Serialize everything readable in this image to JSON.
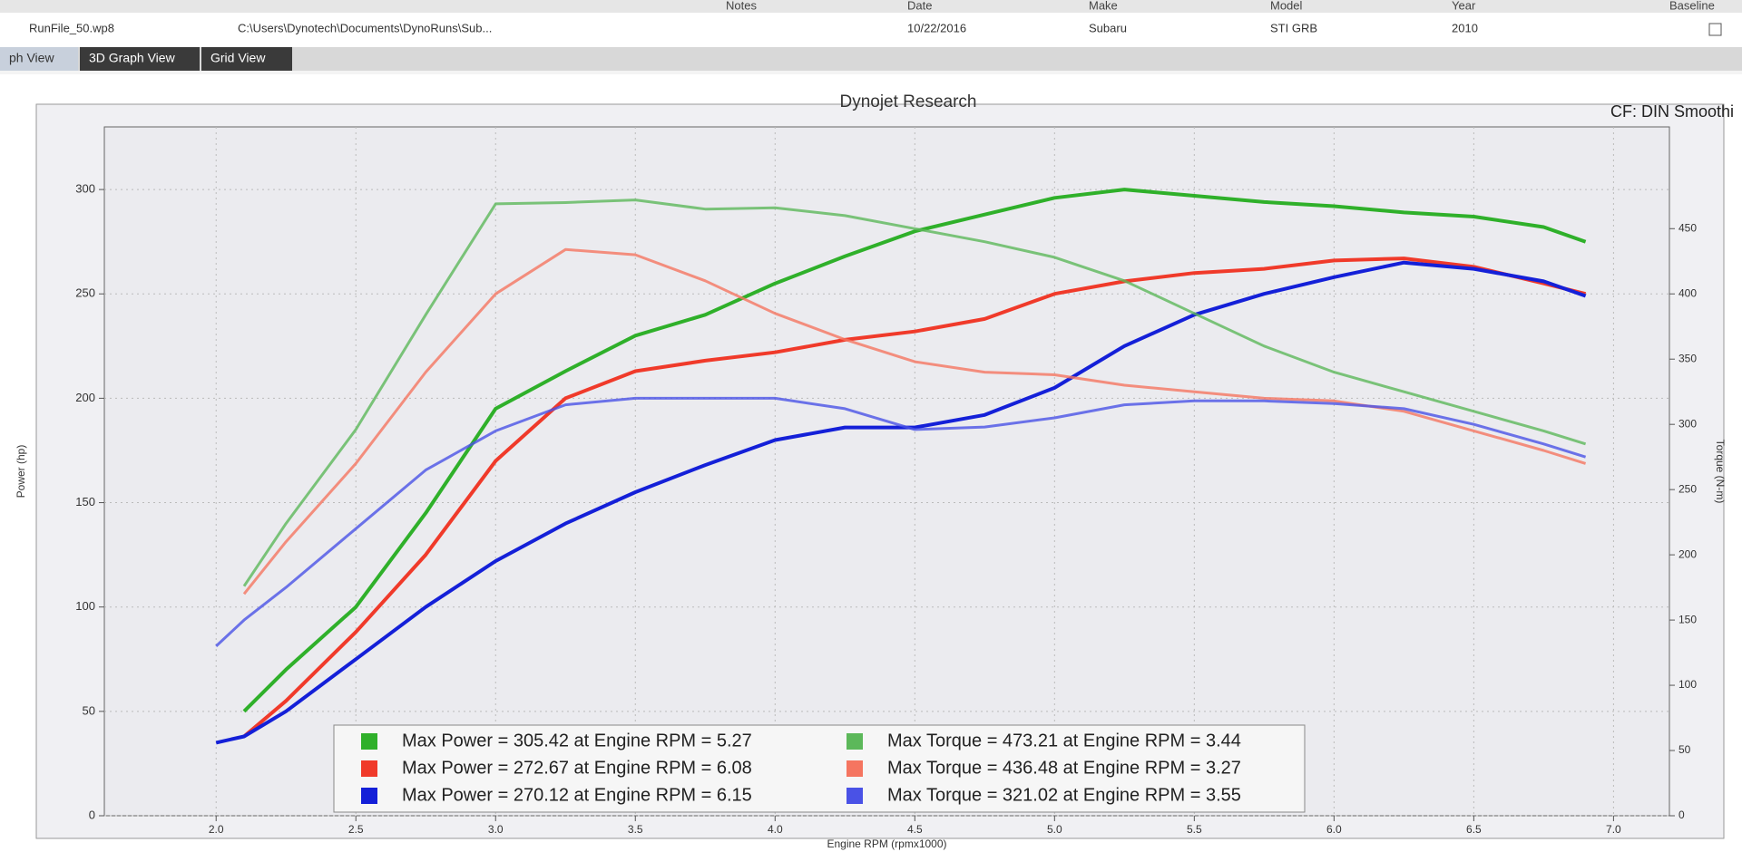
{
  "table": {
    "columns": [
      "Notes",
      "Date",
      "Make",
      "Model",
      "Year",
      "Baseline"
    ],
    "row": [
      "RunFile_50.wp8",
      "C:\\Users\\Dynotech\\Documents\\DynoRuns\\Sub...",
      "10/22/2016",
      "Subaru",
      "STI GRB",
      "2010"
    ]
  },
  "tabs": [
    "ph View",
    "3D Graph View",
    "Grid View"
  ],
  "chart_data": {
    "type": "line",
    "title": "Dynojet Research",
    "subtitle": "CF: DIN Smoothi",
    "x_label": "Engine RPM (rpmx1000)",
    "y_label": "Power (hp)",
    "y2_label": "Torque (N-m)",
    "x": [
      2.0,
      2.1,
      2.25,
      2.5,
      2.75,
      3.0,
      3.25,
      3.5,
      3.75,
      4.0,
      4.25,
      4.5,
      4.75,
      5.0,
      5.25,
      5.5,
      5.75,
      6.0,
      6.25,
      6.5,
      6.75,
      6.9
    ],
    "xlim": [
      1.6,
      7.2
    ],
    "xticks": [
      {
        "value": 2,
        "label": "2.0"
      },
      2.5,
      {
        "value": 3,
        "label": "3.0"
      },
      3.5,
      {
        "value": 4,
        "label": "4.0"
      },
      4.5,
      {
        "value": 5,
        "label": "5.0"
      },
      5.5,
      {
        "value": 6,
        "label": "6.0"
      },
      6.5,
      {
        "value": 7,
        "label": "7.0"
      }
    ],
    "ylim": [
      0,
      330
    ],
    "yticks": [
      0,
      50,
      100,
      150,
      200,
      250,
      300
    ],
    "y2lim": [
      0,
      528
    ],
    "y2ticks": [
      0,
      50,
      100,
      150,
      200,
      250,
      300,
      350,
      400,
      450
    ],
    "grid": true,
    "series": [
      {
        "name": "Max Power = 305.42 at Engine RPM = 5.27",
        "color": "#2fb02a",
        "values": [
          null,
          50,
          70,
          100,
          145,
          195,
          213,
          230,
          240,
          255,
          268,
          280,
          288,
          296,
          300,
          297,
          294,
          292,
          289,
          287,
          282,
          275
        ]
      },
      {
        "name": "Max Power = 272.67 at Engine RPM = 6.08",
        "color": "#f03a2a",
        "values": [
          null,
          38,
          55,
          88,
          125,
          170,
          200,
          213,
          218,
          222,
          228,
          232,
          238,
          250,
          256,
          260,
          262,
          266,
          267,
          263,
          255,
          250
        ]
      },
      {
        "name": "Max Power = 270.12 at Engine RPM = 6.15",
        "color": "#1420d8",
        "values": [
          35,
          38,
          50,
          75,
          100,
          122,
          140,
          155,
          168,
          180,
          186,
          186,
          192,
          205,
          225,
          240,
          250,
          258,
          265,
          262,
          256,
          249
        ]
      },
      {
        "name": "Max Torque = 473.21 at Engine RPM = 3.44",
        "color": "#5cb85a",
        "axis": "y2",
        "values": [
          null,
          176,
          224,
          296,
          384,
          469,
          470,
          472,
          465,
          466,
          460,
          450,
          440,
          428,
          410,
          385,
          360,
          340,
          325,
          310,
          295,
          285
        ]
      },
      {
        "name": "Max Torque = 436.48 at Engine RPM = 3.27",
        "color": "#f57560",
        "axis": "y2",
        "values": [
          null,
          170,
          210,
          270,
          340,
          400,
          434,
          430,
          410,
          385,
          365,
          348,
          340,
          338,
          330,
          325,
          320,
          318,
          310,
          295,
          280,
          270
        ]
      },
      {
        "name": "Max Torque = 321.02 at Engine RPM = 3.55",
        "color": "#4a52e6",
        "axis": "y2",
        "values": [
          130,
          150,
          175,
          220,
          265,
          295,
          315,
          320,
          320,
          320,
          312,
          296,
          298,
          305,
          315,
          318,
          318,
          316,
          312,
          300,
          285,
          275
        ]
      }
    ]
  }
}
